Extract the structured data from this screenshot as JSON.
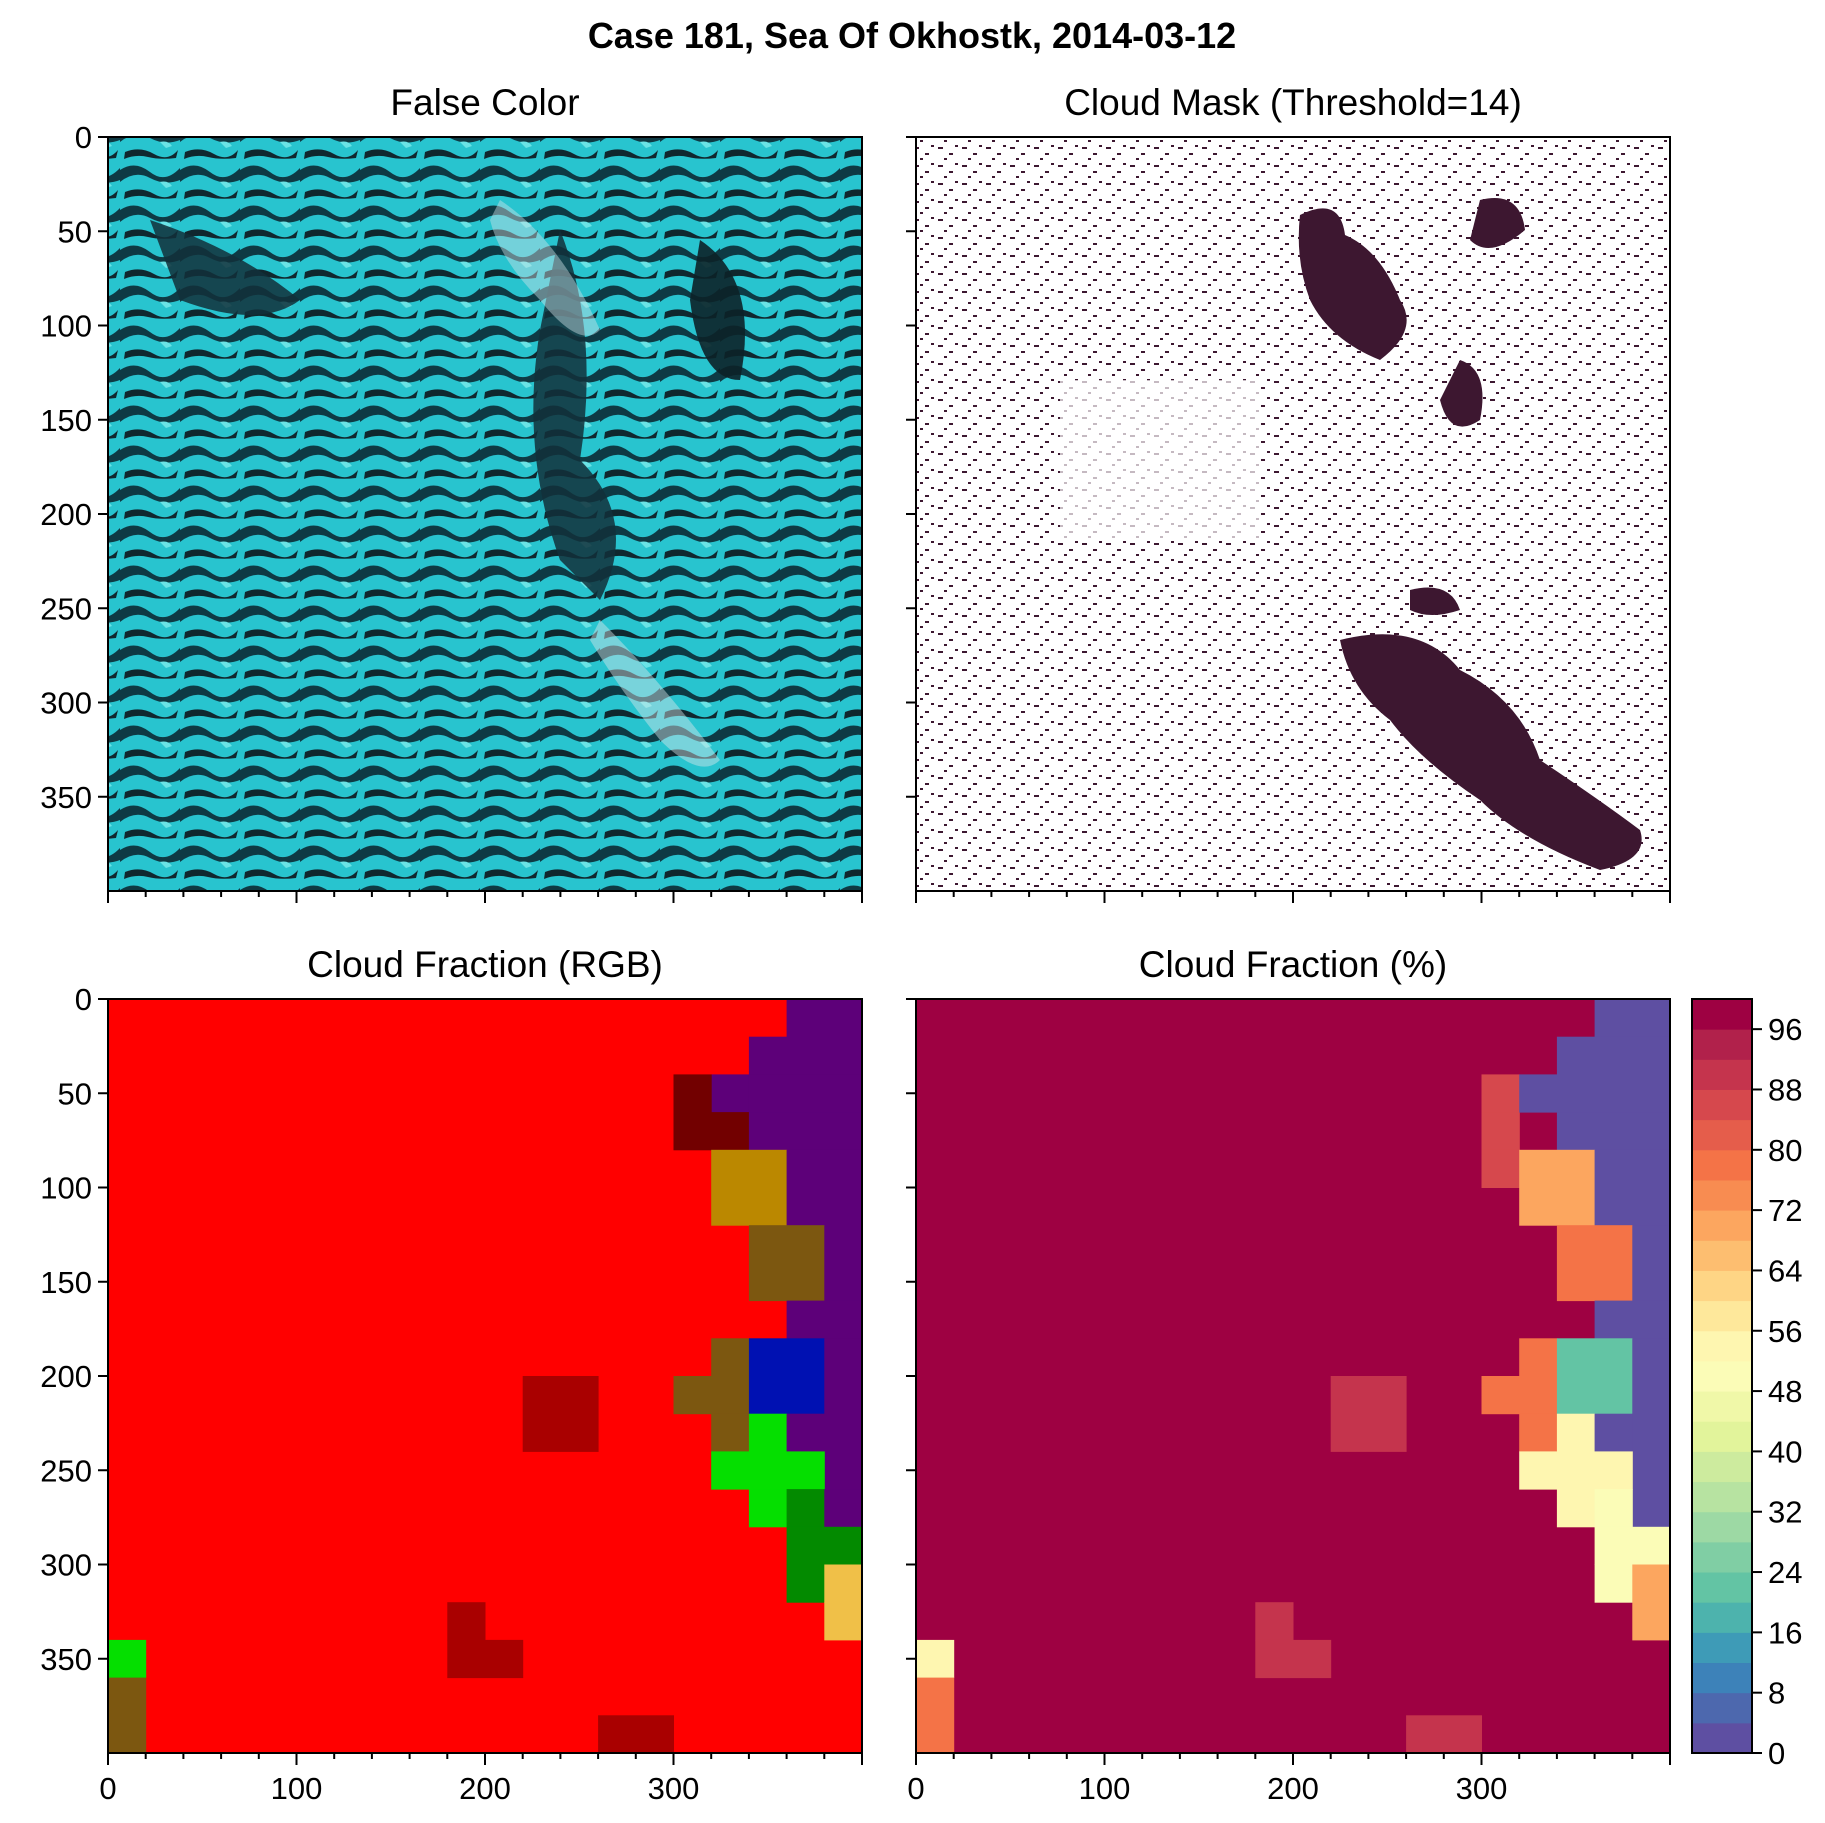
{
  "figure": {
    "suptitle": "Case 181, Sea Of Okhostk, 2014-03-12"
  },
  "panels": {
    "false_color": {
      "title": "False Color"
    },
    "cloud_mask": {
      "title": "Cloud Mask (Threshold=14)"
    },
    "cf_rgb": {
      "title": "Cloud Fraction (RGB)"
    },
    "cf_pct": {
      "title": "Cloud Fraction (%)"
    }
  },
  "axes": {
    "y_ticks": [
      0,
      50,
      100,
      150,
      200,
      250,
      300,
      350
    ],
    "x_ticks": [
      0,
      100,
      200,
      300
    ],
    "extent": [
      0,
      400
    ]
  },
  "colorbar": {
    "ticks": [
      0,
      8,
      16,
      24,
      32,
      40,
      48,
      56,
      64,
      72,
      80,
      88,
      96
    ],
    "range": [
      0,
      100
    ],
    "levels": 25,
    "colormap": "Spectral_r",
    "colors": [
      "#5e4fa2",
      "#4d68ae",
      "#3d82b9",
      "#3e9bb7",
      "#4db3ad",
      "#63c4a4",
      "#80cea4",
      "#9dd9a4",
      "#b7e3a1",
      "#cdeb9e",
      "#e2f49b",
      "#f0f8a8",
      "#fbfcb7",
      "#fef6b0",
      "#fee89b",
      "#fed585",
      "#fdbe70",
      "#fca65f",
      "#f88c51",
      "#f47347",
      "#e55d4b",
      "#d6484d",
      "#c5344d",
      "#b1214b",
      "#9e0142"
    ]
  },
  "chart_data": [
    {
      "type": "heatmap",
      "panel": "False Color",
      "description_values": "satellite false-color image, sea ice (cyan) and open water (dark)",
      "xlim": [
        0,
        400
      ],
      "ylim": [
        400,
        0
      ]
    },
    {
      "type": "heatmap",
      "panel": "Cloud Mask (Threshold=14)",
      "values_legend": {
        "cloud": "#3d1730",
        "clear": "#ffffff"
      },
      "xlim": [
        0,
        400
      ],
      "ylim": [
        400,
        0
      ]
    },
    {
      "type": "heatmap",
      "panel": "Cloud Fraction (RGB)",
      "block_size": 20,
      "grid_rows": 20,
      "grid_cols": 20,
      "default_color": "#ff0000",
      "cells": [
        {
          "x": 360,
          "y": 0,
          "w": 40,
          "h": 20,
          "color": "#5d0079"
        },
        {
          "x": 340,
          "y": 20,
          "w": 60,
          "h": 20,
          "color": "#5d0079"
        },
        {
          "x": 320,
          "y": 40,
          "w": 20,
          "h": 20,
          "color": "#5d0079"
        },
        {
          "x": 340,
          "y": 40,
          "w": 60,
          "h": 20,
          "color": "#5d0079"
        },
        {
          "x": 300,
          "y": 40,
          "w": 20,
          "h": 20,
          "color": "#720000"
        },
        {
          "x": 300,
          "y": 60,
          "w": 40,
          "h": 20,
          "color": "#720000"
        },
        {
          "x": 340,
          "y": 60,
          "w": 60,
          "h": 20,
          "color": "#5d0079"
        },
        {
          "x": 320,
          "y": 80,
          "w": 40,
          "h": 40,
          "color": "#bb8800"
        },
        {
          "x": 360,
          "y": 80,
          "w": 40,
          "h": 40,
          "color": "#5d0079"
        },
        {
          "x": 340,
          "y": 120,
          "w": 40,
          "h": 40,
          "color": "#7c5710"
        },
        {
          "x": 380,
          "y": 120,
          "w": 20,
          "h": 40,
          "color": "#5d0079"
        },
        {
          "x": 360,
          "y": 160,
          "w": 40,
          "h": 20,
          "color": "#5d0079"
        },
        {
          "x": 320,
          "y": 180,
          "w": 20,
          "h": 20,
          "color": "#7c5710"
        },
        {
          "x": 300,
          "y": 200,
          "w": 40,
          "h": 20,
          "color": "#7c5710"
        },
        {
          "x": 320,
          "y": 220,
          "w": 20,
          "h": 20,
          "color": "#7c5710"
        },
        {
          "x": 340,
          "y": 180,
          "w": 40,
          "h": 40,
          "color": "#0011b2"
        },
        {
          "x": 380,
          "y": 180,
          "w": 20,
          "h": 80,
          "color": "#5d0079"
        },
        {
          "x": 340,
          "y": 220,
          "w": 20,
          "h": 20,
          "color": "#05df00"
        },
        {
          "x": 360,
          "y": 220,
          "w": 20,
          "h": 20,
          "color": "#5d0079"
        },
        {
          "x": 320,
          "y": 240,
          "w": 60,
          "h": 20,
          "color": "#05df00"
        },
        {
          "x": 340,
          "y": 260,
          "w": 20,
          "h": 20,
          "color": "#05df00"
        },
        {
          "x": 360,
          "y": 260,
          "w": 20,
          "h": 20,
          "color": "#038a00"
        },
        {
          "x": 380,
          "y": 260,
          "w": 20,
          "h": 20,
          "color": "#5d0079"
        },
        {
          "x": 360,
          "y": 280,
          "w": 40,
          "h": 20,
          "color": "#038a00"
        },
        {
          "x": 360,
          "y": 300,
          "w": 20,
          "h": 20,
          "color": "#038a00"
        },
        {
          "x": 380,
          "y": 300,
          "w": 20,
          "h": 20,
          "color": "#f0c048"
        },
        {
          "x": 380,
          "y": 320,
          "w": 20,
          "h": 20,
          "color": "#f0c048"
        },
        {
          "x": 220,
          "y": 200,
          "w": 40,
          "h": 40,
          "color": "#a90000"
        },
        {
          "x": 180,
          "y": 320,
          "w": 20,
          "h": 20,
          "color": "#a90000"
        },
        {
          "x": 180,
          "y": 340,
          "w": 40,
          "h": 20,
          "color": "#a90000"
        },
        {
          "x": 0,
          "y": 340,
          "w": 20,
          "h": 20,
          "color": "#05df00"
        },
        {
          "x": 0,
          "y": 360,
          "w": 20,
          "h": 40,
          "color": "#7c5710"
        },
        {
          "x": 260,
          "y": 380,
          "w": 40,
          "h": 20,
          "color": "#a90000"
        }
      ],
      "xlim": [
        0,
        400
      ],
      "ylim": [
        400,
        0
      ]
    },
    {
      "type": "heatmap",
      "panel": "Cloud Fraction (%)",
      "block_size": 20,
      "default_value": 100,
      "cells": [
        {
          "x": 360,
          "y": 0,
          "w": 40,
          "h": 20,
          "value": 0
        },
        {
          "x": 340,
          "y": 20,
          "w": 60,
          "h": 20,
          "value": 0
        },
        {
          "x": 300,
          "y": 40,
          "w": 20,
          "h": 40,
          "value": 86
        },
        {
          "x": 300,
          "y": 60,
          "w": 20,
          "h": 20,
          "value": 86
        },
        {
          "x": 320,
          "y": 40,
          "w": 80,
          "h": 20,
          "value": 0
        },
        {
          "x": 340,
          "y": 60,
          "w": 60,
          "h": 20,
          "value": 0
        },
        {
          "x": 300,
          "y": 80,
          "w": 20,
          "h": 20,
          "value": 86
        },
        {
          "x": 320,
          "y": 80,
          "w": 40,
          "h": 40,
          "value": 70
        },
        {
          "x": 360,
          "y": 80,
          "w": 40,
          "h": 80,
          "value": 0
        },
        {
          "x": 340,
          "y": 120,
          "w": 40,
          "h": 40,
          "value": 78
        },
        {
          "x": 380,
          "y": 120,
          "w": 20,
          "h": 40,
          "value": 0
        },
        {
          "x": 360,
          "y": 160,
          "w": 40,
          "h": 20,
          "value": 0
        },
        {
          "x": 320,
          "y": 180,
          "w": 20,
          "h": 20,
          "value": 78
        },
        {
          "x": 300,
          "y": 200,
          "w": 40,
          "h": 20,
          "value": 78
        },
        {
          "x": 320,
          "y": 220,
          "w": 20,
          "h": 20,
          "value": 78
        },
        {
          "x": 340,
          "y": 180,
          "w": 40,
          "h": 40,
          "value": 22
        },
        {
          "x": 380,
          "y": 180,
          "w": 20,
          "h": 100,
          "value": 0
        },
        {
          "x": 340,
          "y": 220,
          "w": 20,
          "h": 20,
          "value": 52
        },
        {
          "x": 360,
          "y": 220,
          "w": 20,
          "h": 20,
          "value": 0
        },
        {
          "x": 320,
          "y": 240,
          "w": 60,
          "h": 20,
          "value": 52
        },
        {
          "x": 340,
          "y": 260,
          "w": 20,
          "h": 20,
          "value": 52
        },
        {
          "x": 360,
          "y": 260,
          "w": 20,
          "h": 20,
          "value": 48
        },
        {
          "x": 360,
          "y": 280,
          "w": 40,
          "h": 20,
          "value": 48
        },
        {
          "x": 360,
          "y": 300,
          "w": 20,
          "h": 20,
          "value": 48
        },
        {
          "x": 380,
          "y": 300,
          "w": 20,
          "h": 40,
          "value": 70
        },
        {
          "x": 220,
          "y": 200,
          "w": 40,
          "h": 40,
          "value": 88
        },
        {
          "x": 180,
          "y": 320,
          "w": 20,
          "h": 20,
          "value": 88
        },
        {
          "x": 180,
          "y": 340,
          "w": 40,
          "h": 20,
          "value": 88
        },
        {
          "x": 0,
          "y": 340,
          "w": 20,
          "h": 20,
          "value": 54
        },
        {
          "x": 0,
          "y": 360,
          "w": 20,
          "h": 40,
          "value": 78
        },
        {
          "x": 260,
          "y": 380,
          "w": 40,
          "h": 20,
          "value": 88
        }
      ],
      "xlim": [
        0,
        400
      ],
      "ylim": [
        400,
        0
      ]
    }
  ]
}
